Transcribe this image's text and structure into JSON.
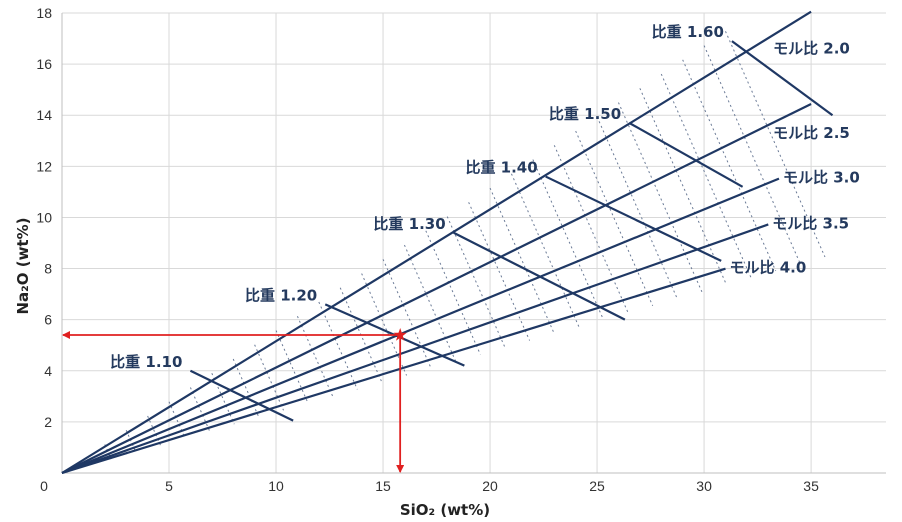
{
  "chart_data": {
    "type": "line",
    "xlabel": "SiO₂ (wt%)",
    "ylabel": "Na₂O (wt%)",
    "xlim": [
      0,
      38.5
    ],
    "ylim": [
      0,
      18
    ],
    "x_ticks": [
      "0",
      "5",
      "10",
      "15",
      "20",
      "25",
      "30",
      "35"
    ],
    "y_ticks": [
      "2",
      "4",
      "6",
      "8",
      "10",
      "12",
      "14",
      "16",
      "18"
    ],
    "grid": true,
    "colors": {
      "line": "#1f3864",
      "label": "#243a5e",
      "marker": "#e02020",
      "grid": "#d9d9d9"
    },
    "mole_ratio_lines": [
      {
        "label": "モル比 2.0",
        "ratio": 2.0,
        "x_end": 35.0
      },
      {
        "label": "モル比 2.5",
        "ratio": 2.5,
        "x_end": 35.0
      },
      {
        "label": "モル比 3.0",
        "ratio": 3.0,
        "x_end": 33.5
      },
      {
        "label": "モル比 3.5",
        "ratio": 3.5,
        "x_end": 33.0
      },
      {
        "label": "モル比 4.0",
        "ratio": 4.0,
        "x_end": 31.0
      }
    ],
    "specific_gravity_lines": [
      {
        "label": "比重 1.10",
        "p1": [
          6.0,
          4.0
        ],
        "p2": [
          10.8,
          2.05
        ]
      },
      {
        "label": "比重 1.20",
        "p1": [
          12.3,
          6.6
        ],
        "p2": [
          18.8,
          4.2
        ]
      },
      {
        "label": "比重 1.30",
        "p1": [
          18.3,
          9.4
        ],
        "p2": [
          26.3,
          6.0
        ]
      },
      {
        "label": "比重 1.40",
        "p1": [
          22.6,
          11.6
        ],
        "p2": [
          30.8,
          8.3
        ]
      },
      {
        "label": "比重 1.50",
        "p1": [
          26.5,
          13.7
        ],
        "p2": [
          31.8,
          11.2
        ]
      },
      {
        "label": "比重 1.60",
        "p1": [
          31.3,
          16.9
        ],
        "p2": [
          36.0,
          14.0
        ]
      }
    ],
    "marker": {
      "x": 15.8,
      "y": 5.4
    }
  }
}
